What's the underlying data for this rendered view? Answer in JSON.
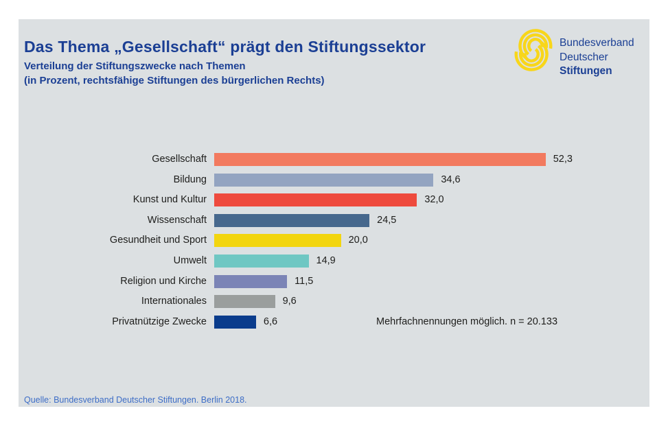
{
  "header": {
    "title": "Das Thema „Gesellschaft“ prägt den Stiftungssektor",
    "subtitle1": "Verteilung der Stiftungszwecke nach Themen",
    "subtitle2": "(in Prozent, rechtsfähige Stiftungen des bürgerlichen Rechts)"
  },
  "logo": {
    "icon": "swirl-s-icon",
    "org_line1": "Bundesverband",
    "org_line2": "Deutscher",
    "org_line3": "Stiftungen",
    "icon_color": "#f8d61a",
    "text_color": "#1b3f94"
  },
  "chart_data": {
    "type": "bar",
    "orientation": "horizontal",
    "title": "Das Thema „Gesellschaft“ prägt den Stiftungssektor",
    "subtitle": "Verteilung der Stiftungszwecke nach Themen (in Prozent, rechtsfähige Stiftungen des bürgerlichen Rechts)",
    "categories": [
      "Gesellschaft",
      "Bildung",
      "Kunst und Kultur",
      "Wissenschaft",
      "Gesundheit und Sport",
      "Umwelt",
      "Religion und Kirche",
      "Internationales",
      "Privatnützige Zwecke"
    ],
    "values": [
      52.3,
      34.6,
      32.0,
      24.5,
      20.0,
      14.9,
      11.5,
      9.6,
      6.6
    ],
    "value_labels": [
      "52,3",
      "34,6",
      "32,0",
      "24,5",
      "20,0",
      "14,9",
      "11,5",
      "9,6",
      "6,6"
    ],
    "bar_colors": [
      "#f27a5f",
      "#93a4c1",
      "#ee4a3d",
      "#46688d",
      "#f2d50f",
      "#6fc7c3",
      "#7b84b6",
      "#9a9e9d",
      "#0a3c8c"
    ],
    "unit": "percent",
    "xlim": [
      0,
      57
    ],
    "grid": false,
    "legend": false,
    "note": "Mehrfachnennungen möglich. n = 20.133"
  },
  "footer": {
    "source": "Quelle: Bundesverband Deutscher Stiftungen. Berlin 2018."
  },
  "colors": {
    "background_panel": "#dce0e2",
    "page_frame": "#ffffff",
    "heading_blue": "#1b3f94",
    "source_blue": "#3d6dc6",
    "text_dark": "#1d1d1b"
  }
}
